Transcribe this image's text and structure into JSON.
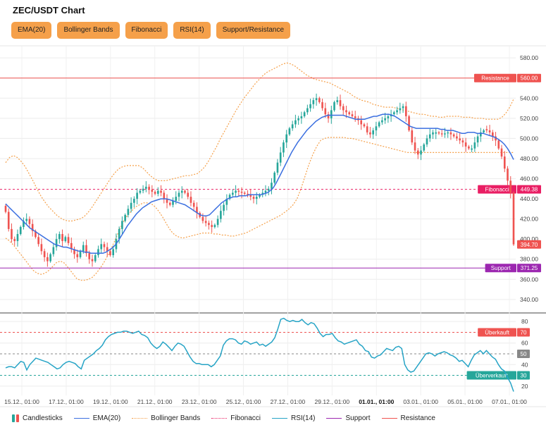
{
  "title": "ZEC/USDT Chart",
  "toolbar": {
    "buttons": [
      "EMA(20)",
      "Bollinger Bands",
      "Fibonacci",
      "RSI(14)",
      "Support/Resistance"
    ]
  },
  "colors": {
    "bull": "#26a69a",
    "bear": "#ef5350",
    "ema": "#3b6fe0",
    "bollinger": "#f5a04a",
    "fibonacci": "#e91e63",
    "rsi": "#26a4c6",
    "support": "#9c27b0",
    "resistance": "#ef5350",
    "rsi_overbought": "#ef5350",
    "rsi_mid": "#888888",
    "rsi_oversold": "#26a69a"
  },
  "chart_data": [
    {
      "type": "candlestick",
      "x_tick_labels": [
        "15.12., 01:00",
        "17.12., 01:00",
        "19.12., 01:00",
        "21.12., 01:00",
        "23.12., 01:00",
        "25.12., 01:00",
        "27.12., 01:00",
        "29.12., 01:00",
        "01.01., 01:00",
        "03.01., 01:00",
        "05.01., 01:00",
        "07.01., 01:00"
      ],
      "x_tick_bold": "01.01., 01:00",
      "y_ticks": [
        340,
        360,
        380,
        400,
        420,
        440,
        460,
        480,
        500,
        520,
        540,
        560,
        580
      ],
      "ylim": [
        328,
        592
      ],
      "close_series": [
        427,
        410,
        400,
        398,
        405,
        412,
        418,
        420,
        415,
        408,
        402,
        395,
        388,
        382,
        378,
        385,
        392,
        400,
        405,
        398,
        402,
        396,
        390,
        385,
        382,
        388,
        394,
        386,
        380,
        378,
        384,
        390,
        395,
        392,
        388,
        384,
        390,
        400,
        410,
        418,
        424,
        430,
        436,
        440,
        446,
        448,
        450,
        452,
        449,
        447,
        445,
        448,
        446,
        440,
        436,
        434,
        438,
        442,
        446,
        448,
        446,
        442,
        436,
        432,
        426,
        422,
        418,
        416,
        414,
        412,
        414,
        420,
        428,
        434,
        440,
        444,
        446,
        448,
        447,
        446,
        445,
        444,
        442,
        440,
        442,
        444,
        446,
        448,
        450,
        456,
        466,
        476,
        486,
        496,
        504,
        510,
        514,
        518,
        520,
        522,
        526,
        530,
        534,
        538,
        540,
        536,
        530,
        524,
        520,
        528,
        536,
        538,
        532,
        528,
        526,
        524,
        522,
        520,
        518,
        514,
        512,
        506,
        504,
        508,
        512,
        516,
        518,
        520,
        522,
        524,
        526,
        528,
        530,
        532,
        522,
        508,
        496,
        488,
        484,
        488,
        494,
        500,
        504,
        506,
        506,
        505,
        504,
        505,
        506,
        504,
        502,
        500,
        498,
        496,
        492,
        490,
        490,
        496,
        502,
        506,
        508,
        508,
        506,
        502,
        498,
        490,
        482,
        470,
        458,
        446,
        394.7
      ],
      "ema_series": [
        435,
        432,
        429,
        426,
        423,
        420,
        417,
        414,
        411,
        409,
        407,
        405,
        403,
        401,
        399,
        397,
        395,
        394,
        393,
        392,
        392,
        391,
        390,
        389,
        388,
        388,
        387,
        387,
        386,
        386,
        386,
        386,
        386,
        387,
        389,
        391,
        394,
        398,
        403,
        408,
        413,
        417,
        421,
        425,
        428,
        431,
        433,
        435,
        437,
        438,
        439,
        440,
        440,
        440,
        439,
        438,
        437,
        436,
        435,
        434,
        432,
        430,
        428,
        426,
        424,
        423,
        423,
        424,
        427,
        430,
        433,
        436,
        438,
        440,
        441,
        442,
        442,
        443,
        443,
        443,
        444,
        444,
        444,
        444,
        444,
        445,
        446,
        448,
        451,
        456,
        462,
        468,
        474,
        480,
        486,
        491,
        496,
        500,
        504,
        508,
        511,
        514,
        517,
        519,
        521,
        522,
        523,
        523,
        523,
        523,
        523,
        523,
        522,
        521,
        520,
        519,
        519,
        519,
        519,
        520,
        521,
        522,
        522,
        523,
        524,
        524,
        524,
        523,
        522,
        520,
        518,
        516,
        514,
        512,
        511,
        510,
        510,
        510,
        510,
        510,
        510,
        510,
        510,
        509,
        509,
        508,
        508,
        508,
        507,
        506,
        505,
        505,
        506,
        506,
        506,
        505,
        505,
        505,
        504,
        503,
        502,
        501,
        499,
        497,
        494,
        490,
        485,
        479
      ],
      "bollinger_upper": [
        476,
        481,
        483,
        481,
        477,
        472,
        465,
        458,
        450,
        443,
        437,
        432,
        428,
        424,
        421,
        419,
        418,
        418,
        419,
        420,
        422,
        426,
        431,
        437,
        443,
        449,
        455,
        461,
        466,
        470,
        472,
        473,
        473,
        473,
        473,
        471,
        467,
        463,
        460,
        458,
        458,
        458,
        459,
        460,
        461,
        462,
        463,
        463,
        464,
        465,
        468,
        472,
        478,
        485,
        492,
        500,
        507,
        514,
        521,
        528,
        534,
        540,
        545,
        550,
        555,
        559,
        563,
        566,
        568,
        570,
        572,
        574,
        575,
        574,
        572,
        569,
        566,
        563,
        561,
        559,
        558,
        557,
        556,
        555,
        553,
        551,
        549,
        547,
        545,
        542,
        540,
        538,
        537,
        536,
        534,
        533,
        532,
        531,
        531,
        531,
        530,
        529,
        528,
        527,
        526,
        525,
        524,
        524,
        523,
        522,
        522,
        521,
        521,
        522,
        522,
        522,
        522,
        521,
        521,
        521,
        520,
        520,
        520,
        519,
        519,
        519,
        519,
        521,
        525,
        531,
        539
      ],
      "bollinger_lower": [
        401,
        398,
        394,
        389,
        384,
        379,
        374,
        369,
        366,
        365,
        366,
        369,
        373,
        377,
        378,
        376,
        371,
        366,
        361,
        359,
        359,
        360,
        362,
        366,
        371,
        377,
        384,
        392,
        401,
        410,
        418,
        424,
        428,
        432,
        434,
        436,
        436,
        435,
        432,
        427,
        421,
        414,
        408,
        404,
        402,
        401,
        402,
        403,
        404,
        405,
        406,
        406,
        406,
        405,
        405,
        404,
        404,
        403,
        403,
        404,
        405,
        406,
        408,
        410,
        412,
        414,
        416,
        418,
        420,
        422,
        424,
        427,
        430,
        434,
        440,
        450,
        462,
        474,
        484,
        492,
        498,
        500,
        501,
        501,
        501,
        501,
        501,
        500,
        500,
        499,
        498,
        497,
        496,
        495,
        494,
        493,
        492,
        491,
        490,
        489,
        488,
        487,
        486,
        486,
        486,
        486,
        486,
        486,
        486,
        486,
        486,
        486,
        486,
        486,
        486,
        486,
        486,
        486,
        486,
        486,
        486,
        486,
        486,
        486,
        486,
        486,
        486,
        486,
        486,
        486
      ],
      "resistance": {
        "value": 560,
        "label": "Resistance",
        "price_label": "560.00"
      },
      "fibonacci": {
        "value": 449.38,
        "label": "Fibonacci",
        "price_label": "449.38"
      },
      "support": {
        "value": 371.25,
        "label": "Support",
        "price_label": "371.25"
      },
      "last_price": {
        "value": 394.7,
        "label": "394.70"
      }
    },
    {
      "type": "line",
      "name": "RSI(14)",
      "y_ticks": [
        20,
        40,
        60,
        80
      ],
      "ylim": [
        14,
        86
      ],
      "rsi_values": [
        37,
        38,
        38,
        37,
        40,
        43,
        42,
        35,
        40,
        43,
        46,
        45,
        44,
        43,
        42,
        40,
        38,
        36,
        37,
        40,
        42,
        43,
        42,
        41,
        38,
        36,
        44,
        46,
        48,
        50,
        53,
        55,
        58,
        63,
        66,
        68,
        69,
        70,
        70,
        71,
        71,
        70,
        69,
        70,
        71,
        68,
        67,
        65,
        60,
        57,
        55,
        57,
        61,
        59,
        56,
        53,
        57,
        60,
        59,
        57,
        52,
        47,
        43,
        41,
        41,
        40,
        40,
        40,
        38,
        40,
        44,
        48,
        58,
        62,
        64,
        64,
        63,
        60,
        59,
        62,
        61,
        59,
        60,
        61,
        58,
        59,
        57,
        59,
        61,
        65,
        73,
        82,
        83,
        81,
        80,
        81,
        80,
        80,
        82,
        79,
        77,
        79,
        78,
        74,
        69,
        66,
        68,
        68,
        69,
        65,
        62,
        61,
        59,
        60,
        61,
        62,
        63,
        59,
        57,
        53,
        52,
        47,
        46,
        48,
        49,
        52,
        55,
        54,
        53,
        56,
        57,
        55,
        40,
        35,
        33,
        34,
        38,
        42,
        46,
        50,
        51,
        50,
        48,
        50,
        51,
        52,
        51,
        49,
        48,
        46,
        43,
        44,
        41,
        38,
        44,
        49,
        51,
        53,
        50,
        53,
        50,
        47,
        45,
        40,
        36,
        34,
        28,
        23,
        15
      ],
      "levels": [
        {
          "value": 70,
          "label": "Überkauft",
          "price_label": "70"
        },
        {
          "value": 50,
          "label": "",
          "price_label": "50"
        },
        {
          "value": 30,
          "label": "Überverkauft",
          "price_label": "30"
        }
      ]
    }
  ],
  "legend": {
    "items": [
      "Candlesticks",
      "EMA(20)",
      "Bollinger Bands",
      "Fibonacci",
      "RSI(14)",
      "Support",
      "Resistance"
    ]
  }
}
